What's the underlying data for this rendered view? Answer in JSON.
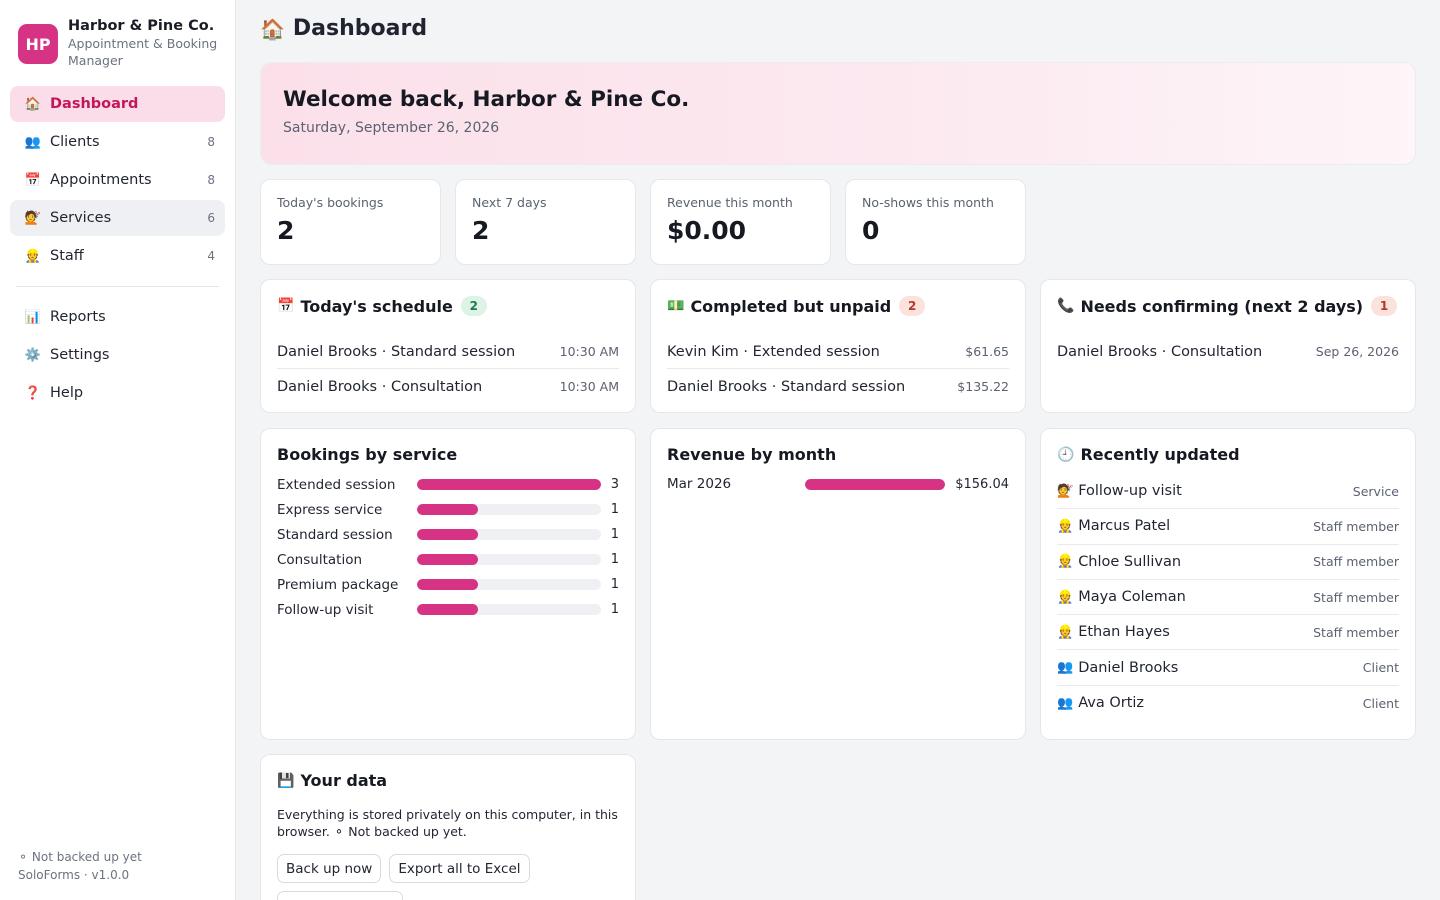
{
  "brand": {
    "initials": "HP",
    "name": "Harbor & Pine Co.",
    "subtitle": "Appointment & Booking Manager",
    "accent": "#d63384"
  },
  "nav": {
    "items": [
      {
        "label": "Dashboard",
        "icon": "house-icon",
        "glyph": "🏠",
        "count": "",
        "state": "active"
      },
      {
        "label": "Clients",
        "icon": "people-icon",
        "glyph": "👥",
        "count": "8",
        "state": ""
      },
      {
        "label": "Appointments",
        "icon": "calendar-icon",
        "glyph": "📅",
        "count": "8",
        "state": ""
      },
      {
        "label": "Services",
        "icon": "hairdresser-icon",
        "glyph": "💇",
        "count": "6",
        "state": "hover"
      },
      {
        "label": "Staff",
        "icon": "worker-icon",
        "glyph": "👷",
        "count": "4",
        "state": ""
      },
      {
        "label": "Reports",
        "icon": "chart-icon",
        "glyph": "📊",
        "count": "",
        "state": ""
      },
      {
        "label": "Settings",
        "icon": "gear-icon",
        "glyph": "⚙️",
        "count": "",
        "state": ""
      },
      {
        "label": "Help",
        "icon": "question-icon",
        "glyph": "❓",
        "count": "",
        "state": ""
      }
    ]
  },
  "footer": {
    "backup_status": "⚬ Not backed up yet",
    "version": "SoloForms · v1.0.0"
  },
  "page": {
    "title": "Dashboard",
    "icon_glyph": "🏠"
  },
  "welcome": {
    "heading": "Welcome back, Harbor & Pine Co.",
    "date": "Saturday, September 26, 2026"
  },
  "stats": [
    {
      "label": "Today's bookings",
      "value": "2"
    },
    {
      "label": "Next 7 days",
      "value": "2"
    },
    {
      "label": "Revenue this month",
      "value": "$0.00"
    },
    {
      "label": "No-shows this month",
      "value": "0"
    }
  ],
  "schedule": {
    "title": "Today's schedule",
    "icon_glyph": "📅",
    "badge": "2",
    "rows": [
      {
        "text": "Daniel Brooks · Standard session",
        "meta": "10:30 AM"
      },
      {
        "text": "Daniel Brooks · Consultation",
        "meta": "10:30 AM"
      }
    ]
  },
  "unpaid": {
    "title": "Completed but unpaid",
    "icon_glyph": "💵",
    "badge": "2",
    "rows": [
      {
        "text": "Kevin Kim · Extended session",
        "meta": "$61.65"
      },
      {
        "text": "Daniel Brooks · Standard session",
        "meta": "$135.22"
      }
    ]
  },
  "confirming": {
    "title": "Needs confirming (next 2 days)",
    "icon_glyph": "📞",
    "badge": "1",
    "rows": [
      {
        "text": "Daniel Brooks · Consultation",
        "meta": "Sep 26, 2026"
      }
    ]
  },
  "bookings_by_service": {
    "title": "Bookings by service",
    "max": 3,
    "items": [
      {
        "name": "Extended session",
        "value": 3
      },
      {
        "name": "Express service",
        "value": 1
      },
      {
        "name": "Standard session",
        "value": 1
      },
      {
        "name": "Consultation",
        "value": 1
      },
      {
        "name": "Premium package",
        "value": 1
      },
      {
        "name": "Follow-up visit",
        "value": 1
      }
    ]
  },
  "revenue_by_month": {
    "title": "Revenue by month",
    "items": [
      {
        "name": "Mar 2026",
        "value": 156.04,
        "label": "$156.04",
        "fill": 1.0
      }
    ]
  },
  "recent": {
    "title": "Recently updated",
    "icon_glyph": "🕘",
    "rows": [
      {
        "glyph": "💇",
        "icon": "hairdresser-icon",
        "text": "Follow-up visit",
        "meta": "Service"
      },
      {
        "glyph": "👷",
        "icon": "worker-icon",
        "text": "Marcus Patel",
        "meta": "Staff member"
      },
      {
        "glyph": "👷",
        "icon": "worker-icon",
        "text": "Chloe Sullivan",
        "meta": "Staff member"
      },
      {
        "glyph": "👷",
        "icon": "worker-icon",
        "text": "Maya Coleman",
        "meta": "Staff member"
      },
      {
        "glyph": "👷",
        "icon": "worker-icon",
        "text": "Ethan Hayes",
        "meta": "Staff member"
      },
      {
        "glyph": "👥",
        "icon": "people-icon",
        "text": "Daniel Brooks",
        "meta": "Client"
      },
      {
        "glyph": "👥",
        "icon": "people-icon",
        "text": "Ava Ortiz",
        "meta": "Client"
      }
    ]
  },
  "your_data": {
    "title": "Your data",
    "icon_glyph": "💾",
    "text": "Everything is stored privately on this computer, in this browser. ⚬ Not backed up yet.",
    "buttons": [
      "Back up now",
      "Export all to Excel"
    ],
    "partial_button": "Tr..."
  }
}
